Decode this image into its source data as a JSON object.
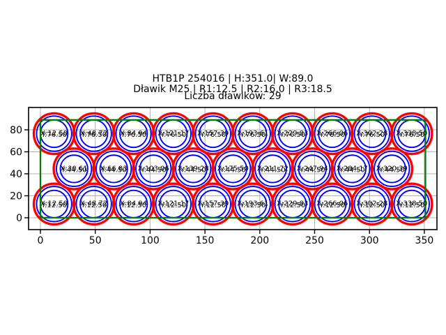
{
  "chart_data": {
    "type": "scatter",
    "title_lines": [
      "HTB1P 254016 | H:351.0| W:89.0",
      "Dławik M25 | R1:12.5 | R2:16.0 | R3:18.5",
      "Liczba dławików: 29"
    ],
    "xlabel": "",
    "ylabel": "",
    "xlim": [
      -10.8,
      361.6
    ],
    "ylim": [
      -10.8,
      100.3
    ],
    "aspect": "equal",
    "grid": true,
    "xticks": {
      "values": [
        0,
        50,
        100,
        150,
        200,
        250,
        300,
        350
      ],
      "labels": [
        "0",
        "50",
        "100",
        "150",
        "200",
        "250",
        "300",
        "350"
      ]
    },
    "yticks": {
      "values": [
        0,
        20,
        40,
        60,
        80
      ],
      "labels": [
        "0",
        "20",
        "40",
        "60",
        "80"
      ]
    },
    "plate_outline": {
      "x": 0,
      "y": 0,
      "width": 351.0,
      "height": 89.0
    },
    "gland_radii": {
      "r1": 12.5,
      "r2": 16.0,
      "r3": 18.5
    },
    "gland_count": 29,
    "colors": {
      "outer_ring": "#ff0000",
      "inner_rings": "#0000ff",
      "plate": "#008000",
      "grid": "#b0b0b0",
      "axes": "#000000",
      "text": "#000000",
      "background": "#ffffff"
    },
    "glands": [
      {
        "x": 12.5,
        "y": 12.5,
        "label_x": "X:12.50",
        "label_y": "Y:12.50"
      },
      {
        "x": 48.72,
        "y": 12.5,
        "label_x": "X:48.72",
        "label_y": "Y:12.50"
      },
      {
        "x": 84.94,
        "y": 12.5,
        "label_x": "X:84.94",
        "label_y": "Y:12.50"
      },
      {
        "x": 121.17,
        "y": 12.5,
        "label_x": "X:121.17",
        "label_y": "Y:12.50"
      },
      {
        "x": 157.39,
        "y": 12.5,
        "label_x": "X:157.39",
        "label_y": "Y:12.50"
      },
      {
        "x": 193.61,
        "y": 12.5,
        "label_x": "X:193.61",
        "label_y": "Y:12.50"
      },
      {
        "x": 229.83,
        "y": 12.5,
        "label_x": "X:229.83",
        "label_y": "Y:12.50"
      },
      {
        "x": 266.06,
        "y": 12.5,
        "label_x": "X:266.06",
        "label_y": "Y:12.50"
      },
      {
        "x": 302.28,
        "y": 12.5,
        "label_x": "X:302.28",
        "label_y": "Y:12.50"
      },
      {
        "x": 338.5,
        "y": 12.5,
        "label_x": "X:338.50",
        "label_y": "Y:12.50"
      },
      {
        "x": 30.61,
        "y": 44.5,
        "label_x": "X:30.61",
        "label_y": "Y:44.50"
      },
      {
        "x": 66.83,
        "y": 44.5,
        "label_x": "X:66.83",
        "label_y": "Y:44.50"
      },
      {
        "x": 103.06,
        "y": 44.5,
        "label_x": "X:103.06",
        "label_y": "Y:44.50"
      },
      {
        "x": 139.28,
        "y": 44.5,
        "label_x": "X:139.28",
        "label_y": "Y:44.50"
      },
      {
        "x": 175.5,
        "y": 44.5,
        "label_x": "X:175.50",
        "label_y": "Y:44.50"
      },
      {
        "x": 211.72,
        "y": 44.5,
        "label_x": "X:211.72",
        "label_y": "Y:44.50"
      },
      {
        "x": 247.94,
        "y": 44.5,
        "label_x": "X:247.94",
        "label_y": "Y:44.50"
      },
      {
        "x": 284.17,
        "y": 44.5,
        "label_x": "X:284.17",
        "label_y": "Y:44.50"
      },
      {
        "x": 320.39,
        "y": 44.5,
        "label_x": "X:320.39",
        "label_y": "Y:44.50"
      },
      {
        "x": 12.5,
        "y": 76.5,
        "label_x": "X:12.50",
        "label_y": "Y:76.50"
      },
      {
        "x": 48.72,
        "y": 76.5,
        "label_x": "X:48.72",
        "label_y": "Y:76.50"
      },
      {
        "x": 84.94,
        "y": 76.5,
        "label_x": "X:84.94",
        "label_y": "Y:76.50"
      },
      {
        "x": 121.17,
        "y": 76.5,
        "label_x": "X:121.17",
        "label_y": "Y:76.50"
      },
      {
        "x": 157.39,
        "y": 76.5,
        "label_x": "X:157.39",
        "label_y": "Y:76.50"
      },
      {
        "x": 193.61,
        "y": 76.5,
        "label_x": "X:193.61",
        "label_y": "Y:76.50"
      },
      {
        "x": 229.83,
        "y": 76.5,
        "label_x": "X:229.83",
        "label_y": "Y:76.50"
      },
      {
        "x": 266.06,
        "y": 76.5,
        "label_x": "X:266.06",
        "label_y": "Y:76.50"
      },
      {
        "x": 302.28,
        "y": 76.5,
        "label_x": "X:302.28",
        "label_y": "Y:76.50"
      },
      {
        "x": 338.5,
        "y": 76.5,
        "label_x": "X:338.50",
        "label_y": "Y:76.50"
      }
    ]
  }
}
